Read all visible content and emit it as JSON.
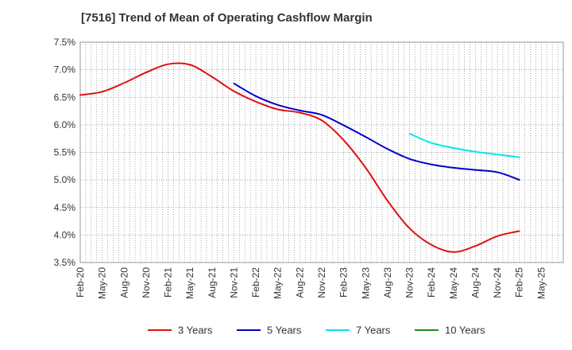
{
  "chart_data": {
    "type": "line",
    "title": "[7516]  Trend of Mean of Operating Cashflow Margin",
    "xlabel": "",
    "ylabel": "",
    "categories": [
      "Feb-20",
      "May-20",
      "Aug-20",
      "Nov-20",
      "Feb-21",
      "May-21",
      "Aug-21",
      "Nov-21",
      "Feb-22",
      "May-22",
      "Aug-22",
      "Nov-22",
      "Feb-23",
      "May-23",
      "Aug-23",
      "Nov-23",
      "Feb-24",
      "May-24",
      "Aug-24",
      "Nov-24",
      "Feb-25",
      "May-25"
    ],
    "y_tick_labels": [
      "3.5%",
      "4.0%",
      "4.5%",
      "5.0%",
      "5.5%",
      "6.0%",
      "6.5%",
      "7.0%",
      "7.5%"
    ],
    "ylim": [
      3.5,
      7.5
    ],
    "y_unit": "%",
    "grid": true,
    "legend_position": "bottom",
    "series": [
      {
        "name": "3 Years",
        "color": "#dd1111",
        "values": [
          6.54,
          6.6,
          6.76,
          6.95,
          7.1,
          7.09,
          6.87,
          6.61,
          6.42,
          6.28,
          6.22,
          6.08,
          5.72,
          5.22,
          4.62,
          4.12,
          3.82,
          3.69,
          3.8,
          3.98,
          4.07,
          null
        ]
      },
      {
        "name": "5 Years",
        "color": "#0000cc",
        "values": [
          null,
          null,
          null,
          null,
          null,
          null,
          null,
          6.75,
          6.52,
          6.36,
          6.26,
          6.18,
          5.99,
          5.78,
          5.56,
          5.38,
          5.28,
          5.22,
          5.18,
          5.14,
          5.0,
          null
        ]
      },
      {
        "name": "7 Years",
        "color": "#00e5ee",
        "values": [
          null,
          null,
          null,
          null,
          null,
          null,
          null,
          null,
          null,
          null,
          null,
          null,
          null,
          null,
          null,
          5.84,
          5.67,
          5.58,
          5.51,
          5.46,
          5.41,
          null
        ]
      },
      {
        "name": "10 Years",
        "color": "#228b22",
        "values": [
          null,
          null,
          null,
          null,
          null,
          null,
          null,
          null,
          null,
          null,
          null,
          null,
          null,
          null,
          null,
          null,
          null,
          null,
          null,
          null,
          null,
          null
        ]
      }
    ]
  }
}
